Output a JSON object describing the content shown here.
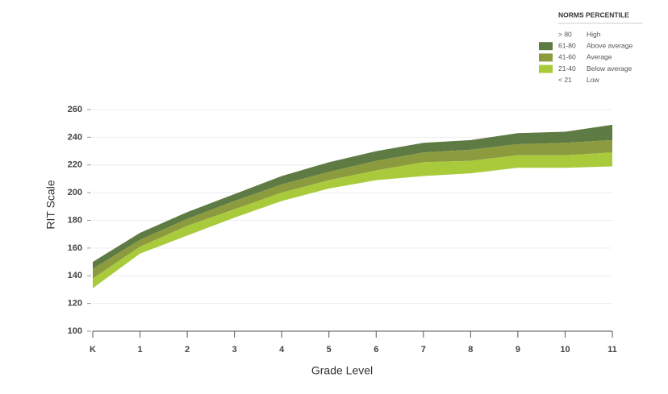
{
  "chart_data": {
    "type": "band",
    "xlabel": "Grade Level",
    "ylabel": "RIT Scale",
    "categories": [
      "K",
      "1",
      "2",
      "3",
      "4",
      "5",
      "6",
      "7",
      "8",
      "9",
      "10",
      "11"
    ],
    "ylim": [
      100,
      260
    ],
    "yticks": [
      100,
      120,
      140,
      160,
      180,
      200,
      220,
      240,
      260
    ],
    "grid": true,
    "legend_title": "NORMS PERCENTILE",
    "series": [
      {
        "range": "> 80",
        "name": "High"
      },
      {
        "range": "61-80",
        "name": "Above average",
        "color": "#5f7b44",
        "high": [
          150,
          171,
          186,
          199,
          212,
          222,
          230,
          236,
          238,
          243,
          244,
          249
        ],
        "low": [
          145,
          166,
          181,
          194,
          206,
          215,
          223,
          229,
          231,
          235,
          236,
          238
        ]
      },
      {
        "range": "41-60",
        "name": "Average",
        "color": "#8d9b3f",
        "high": [
          145,
          166,
          181,
          194,
          206,
          215,
          223,
          229,
          231,
          235,
          236,
          238
        ],
        "low": [
          138,
          161,
          176,
          188,
          200,
          209,
          216,
          222,
          223,
          227,
          227,
          229
        ]
      },
      {
        "range": "21-40",
        "name": "Below average",
        "color": "#a9cb3b",
        "high": [
          138,
          161,
          176,
          188,
          200,
          209,
          216,
          222,
          223,
          227,
          227,
          229
        ],
        "low": [
          131,
          156,
          169,
          182,
          194,
          203,
          209,
          212,
          214,
          218,
          218,
          219
        ]
      },
      {
        "range": "< 21",
        "name": "Low"
      }
    ]
  }
}
